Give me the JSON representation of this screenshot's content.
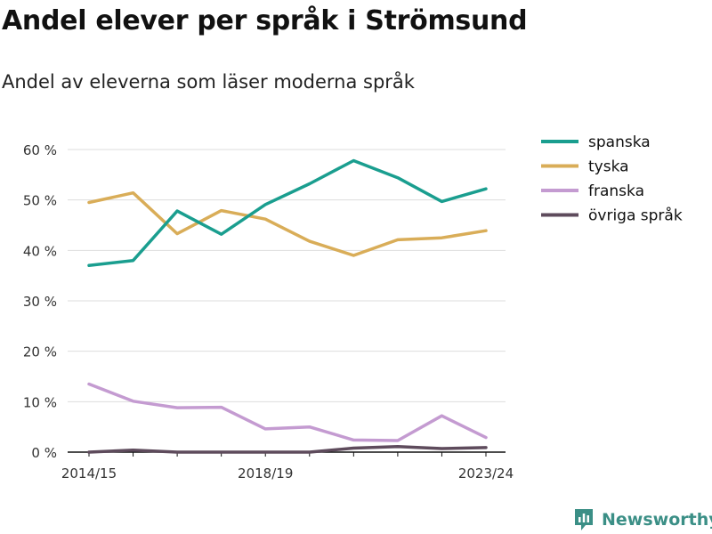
{
  "title": "Andel elever per språk i Strömsund",
  "subtitle": "Andel av eleverna som läser moderna språk",
  "brand": {
    "name": "Newsworthy",
    "icon": "newsworthy-logo-icon",
    "color": "#3b8f86"
  },
  "chart_data": {
    "type": "line",
    "x": [
      "2014/15",
      "2015/16",
      "2016/17",
      "2017/18",
      "2018/19",
      "2019/20",
      "2020/21",
      "2021/22",
      "2022/23",
      "2023/24"
    ],
    "x_tick_labels": [
      "2014/15",
      "2018/19",
      "2023/24"
    ],
    "y_ticks": [
      0,
      10,
      20,
      30,
      40,
      50,
      60
    ],
    "y_tick_labels": [
      "0 %",
      "10 %",
      "20 %",
      "30 %",
      "40 %",
      "50 %",
      "60 %"
    ],
    "ylim": [
      0,
      60
    ],
    "grid": true,
    "legend": "right",
    "series": [
      {
        "name": "spanska",
        "color": "#1a9e8f",
        "values": [
          37.0,
          38.0,
          47.8,
          43.2,
          49.1,
          53.2,
          57.8,
          54.4,
          49.7,
          52.2
        ]
      },
      {
        "name": "tyska",
        "color": "#d9ad58",
        "values": [
          49.5,
          51.4,
          43.3,
          47.9,
          46.2,
          41.8,
          39.0,
          42.1,
          42.5,
          43.9
        ]
      },
      {
        "name": "franska",
        "color": "#c49bd1",
        "values": [
          13.5,
          10.1,
          8.8,
          8.9,
          4.6,
          5.0,
          2.4,
          2.3,
          7.2,
          2.9
        ]
      },
      {
        "name": "övriga språk",
        "color": "#5e4b5c",
        "values": [
          0.0,
          0.4,
          0.0,
          0.0,
          0.0,
          0.0,
          0.8,
          1.1,
          0.7,
          0.9
        ]
      }
    ]
  }
}
